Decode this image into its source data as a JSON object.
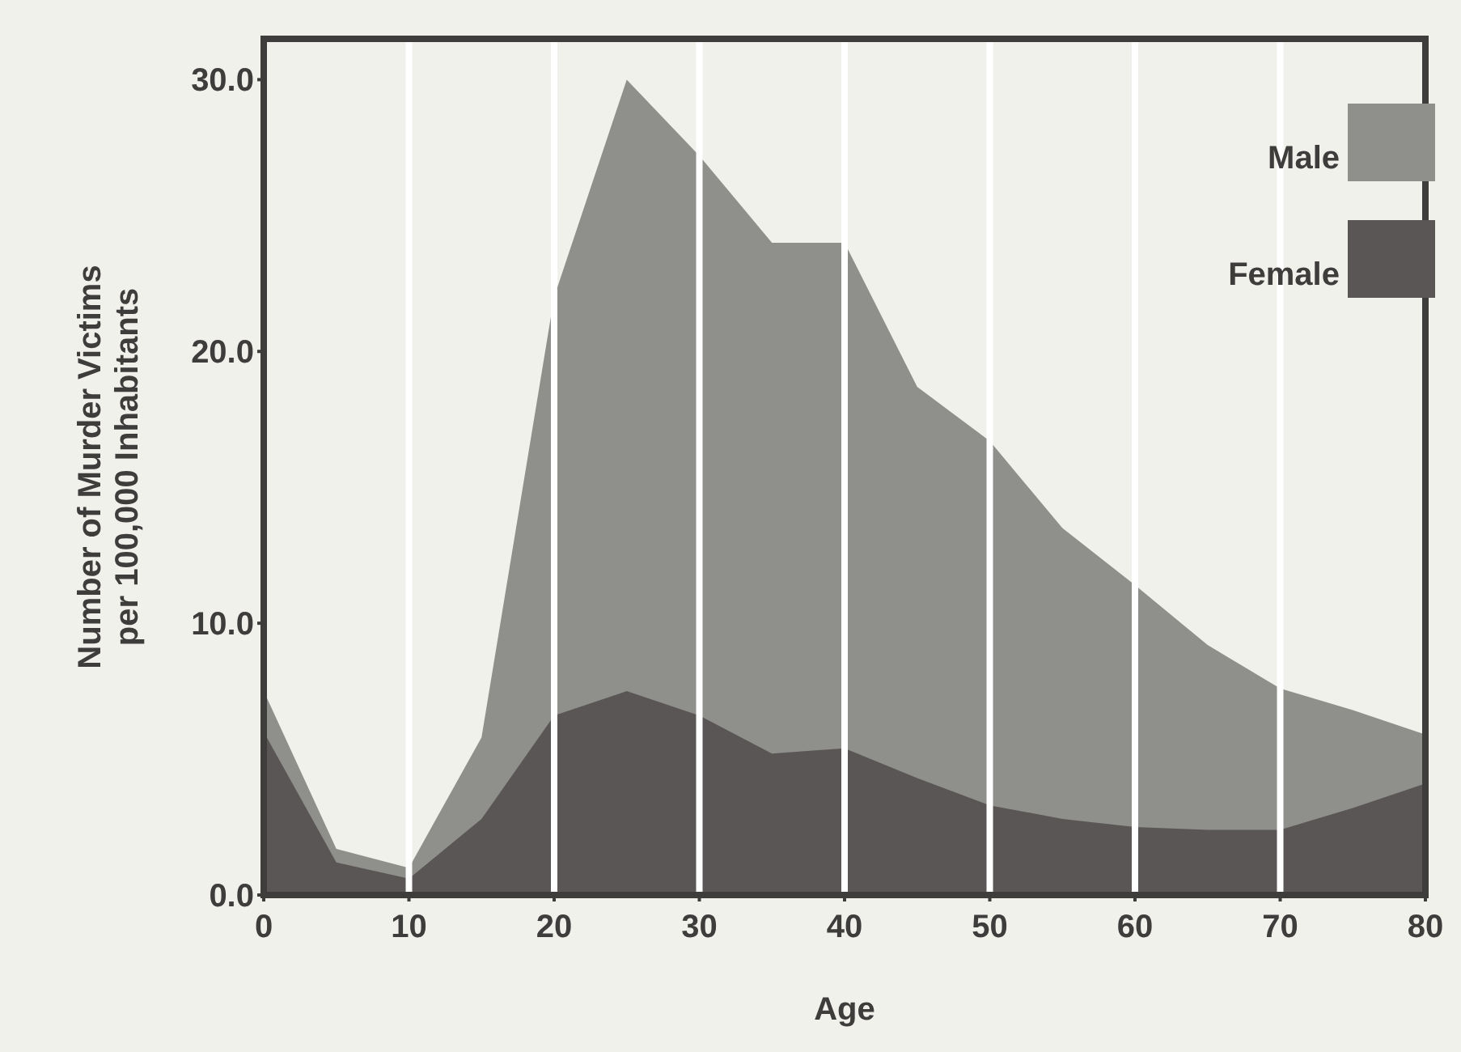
{
  "chart_data": {
    "type": "area",
    "xlabel": "Age",
    "ylabel": "Number of Murder Victims\nper 100,000 Inhabitants",
    "x": [
      0,
      5,
      10,
      15,
      20,
      25,
      30,
      35,
      40,
      45,
      50,
      55,
      60,
      65,
      70,
      75,
      80
    ],
    "series": [
      {
        "name": "Male",
        "color": "#8f8f8c",
        "values": [
          7.5,
          1.7,
          1.0,
          5.8,
          22,
          30,
          27.2,
          24,
          24,
          18.7,
          16.7,
          13.5,
          11.4,
          9.2,
          7.6,
          6.8,
          5.9
        ]
      },
      {
        "name": "Female",
        "color": "#5a5656",
        "values": [
          6.0,
          1.2,
          0.6,
          2.8,
          6.6,
          7.5,
          6.6,
          5.2,
          5.4,
          4.3,
          3.3,
          2.8,
          2.5,
          2.4,
          2.4,
          3.2,
          4.1
        ]
      }
    ],
    "xlim": [
      0,
      80
    ],
    "xticks": [
      0,
      10,
      20,
      30,
      40,
      50,
      60,
      70,
      80
    ],
    "ylim": [
      0,
      31.5
    ],
    "yticks": [
      {
        "value": 0,
        "label": "0.0"
      },
      {
        "value": 10,
        "label": "10.0"
      },
      {
        "value": 20,
        "label": "20.0"
      },
      {
        "value": 30,
        "label": "30.0"
      }
    ],
    "grid": "x",
    "legend": "top right"
  }
}
